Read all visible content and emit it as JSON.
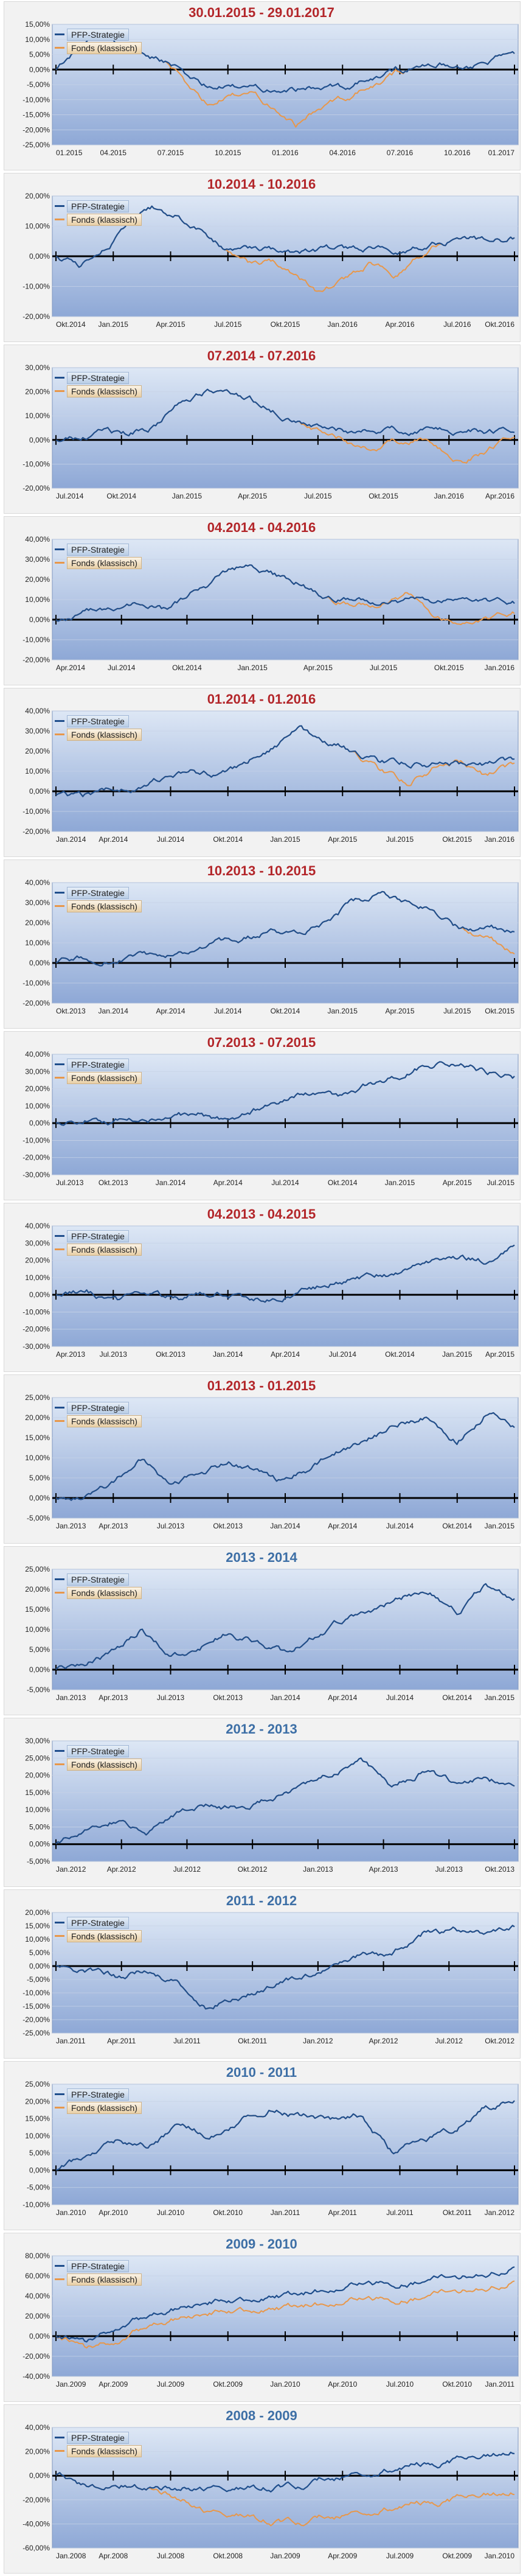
{
  "colors": {
    "strategy": "#1f4e8c",
    "funds": "#e8974a",
    "title_red": "#b3262a",
    "title_blue": "#3d6fa6",
    "plot_top": "#dde7f5",
    "plot_bottom": "#8ea8d6"
  },
  "legend": {
    "strategy": "PFP-Strategie",
    "funds": "Fonds (klassisch)"
  },
  "chart_data": [
    {
      "type": "line",
      "title": "30.01.2015 - 29.01.2017",
      "title_color": "red",
      "yticks": [
        15,
        10,
        5,
        0,
        -5,
        -10,
        -15,
        -20,
        -25
      ],
      "ylim": [
        -25,
        15
      ],
      "xticks": [
        "01.2015",
        "04.2015",
        "07.2015",
        "10.2015",
        "01.2016",
        "04.2016",
        "07.2016",
        "10.2016",
        "01.2017"
      ],
      "series": [
        {
          "name": "PFP-Strategie",
          "keypoints": [
            0,
            7,
            12,
            8,
            5,
            3,
            -2,
            -6,
            -6,
            -6,
            -6,
            -6,
            -6,
            -6,
            -4,
            -2,
            0,
            1,
            2,
            1,
            3,
            5
          ]
        },
        {
          "name": "Fonds (klassisch)",
          "keypoints": [
            0,
            7,
            12,
            8,
            5,
            3,
            -5,
            -12,
            -9,
            -8,
            -12,
            -18,
            -13,
            -10,
            -7,
            -4,
            0,
            1,
            2,
            1,
            3,
            5
          ]
        }
      ]
    },
    {
      "type": "line",
      "title": "10.2014 - 10.2016",
      "title_color": "red",
      "yticks": [
        20,
        10,
        0,
        -10,
        -20
      ],
      "ylim": [
        -20,
        20
      ],
      "xticks": [
        "Okt.2014",
        "Jan.2015",
        "Apr.2015",
        "Jul.2015",
        "Okt.2015",
        "Jan.2016",
        "Apr.2016",
        "Jul.2016",
        "Okt.2016"
      ],
      "series": [
        {
          "name": "PFP-Strategie",
          "keypoints": [
            0,
            -3,
            3,
            10,
            16,
            14,
            9,
            2,
            2,
            2,
            2,
            2,
            2,
            2,
            2,
            3,
            5,
            6,
            5,
            6
          ]
        },
        {
          "name": "Fonds (klassisch)",
          "keypoints": [
            0,
            -3,
            3,
            10,
            16,
            14,
            9,
            2,
            -3,
            -2,
            -6,
            -13,
            -8,
            -3,
            -6,
            0,
            5,
            6,
            5,
            6
          ]
        }
      ]
    },
    {
      "type": "line",
      "title": "07.2014 - 07.2016",
      "title_color": "red",
      "yticks": [
        30,
        20,
        10,
        0,
        -10,
        -20
      ],
      "ylim": [
        -20,
        30
      ],
      "xticks": [
        "Jul.2014",
        "Okt.2014",
        "Jan.2015",
        "Apr.2015",
        "Jul.2015",
        "Okt.2015",
        "Jan.2016",
        "Apr.2016"
      ],
      "series": [
        {
          "name": "PFP-Strategie",
          "keypoints": [
            0,
            1,
            3,
            2,
            5,
            14,
            20,
            22,
            18,
            13,
            8,
            4,
            4,
            4,
            4,
            4,
            4,
            4,
            4,
            4
          ]
        },
        {
          "name": "Fonds (klassisch)",
          "keypoints": [
            0,
            1,
            3,
            2,
            5,
            14,
            20,
            22,
            18,
            13,
            8,
            2,
            0,
            -4,
            -1,
            1,
            -5,
            -9,
            -3,
            2
          ]
        }
      ]
    },
    {
      "type": "line",
      "title": "04.2014 - 04.2016",
      "title_color": "red",
      "yticks": [
        40,
        30,
        20,
        10,
        0,
        -10,
        -20
      ],
      "ylim": [
        -20,
        40
      ],
      "xticks": [
        "Apr.2014",
        "Jul.2014",
        "Okt.2014",
        "Jan.2015",
        "Apr.2015",
        "Jul.2015",
        "Okt.2015",
        "Jan.2016"
      ],
      "series": [
        {
          "name": "PFP-Strategie",
          "keypoints": [
            0,
            3,
            6,
            8,
            5,
            12,
            20,
            26,
            22,
            18,
            12,
            9,
            9,
            9,
            9,
            9,
            9,
            9
          ]
        },
        {
          "name": "Fonds (klassisch)",
          "keypoints": [
            0,
            3,
            6,
            8,
            5,
            12,
            20,
            26,
            22,
            18,
            12,
            6,
            8,
            12,
            2,
            -4,
            0,
            4
          ]
        }
      ]
    },
    {
      "type": "line",
      "title": "01.2014 - 01.2016",
      "title_color": "red",
      "yticks": [
        40,
        30,
        20,
        10,
        0,
        -10,
        -20
      ],
      "ylim": [
        -20,
        40
      ],
      "xticks": [
        "Jan.2014",
        "Apr.2014",
        "Jul.2014",
        "Okt.2014",
        "Jan.2015",
        "Apr.2015",
        "Jul.2015",
        "Okt.2015",
        "Jan.2016"
      ],
      "series": [
        {
          "name": "PFP-Strategie",
          "keypoints": [
            -2,
            -3,
            0,
            3,
            6,
            9,
            8,
            14,
            22,
            30,
            26,
            20,
            14,
            14,
            14,
            14,
            14,
            14
          ]
        },
        {
          "name": "Fonds (klassisch)",
          "keypoints": [
            -2,
            -3,
            0,
            3,
            6,
            9,
            8,
            14,
            22,
            30,
            26,
            20,
            10,
            4,
            12,
            15,
            8,
            12
          ]
        }
      ]
    },
    {
      "type": "line",
      "title": "10.2013 - 10.2015",
      "title_color": "red",
      "yticks": [
        40,
        30,
        20,
        10,
        0,
        -10,
        -20
      ],
      "ylim": [
        -20,
        40
      ],
      "xticks": [
        "Okt.2013",
        "Jan.2014",
        "Apr.2014",
        "Jul.2014",
        "Okt.2014",
        "Jan.2015",
        "Apr.2015",
        "Jul.2015",
        "Okt.2015"
      ],
      "series": [
        {
          "name": "PFP-Strategie",
          "keypoints": [
            0,
            2,
            1,
            3,
            1,
            4,
            9,
            12,
            16,
            14,
            20,
            30,
            34,
            30,
            26,
            17,
            17,
            17
          ]
        },
        {
          "name": "Fonds (klassisch)",
          "keypoints": [
            0,
            2,
            1,
            3,
            1,
            4,
            9,
            12,
            16,
            14,
            20,
            30,
            34,
            30,
            26,
            17,
            12,
            6
          ]
        }
      ]
    },
    {
      "type": "line",
      "title": "07.2013 - 07.2015",
      "title_color": "red",
      "yticks": [
        40,
        30,
        20,
        10,
        0,
        -10,
        -20,
        -30
      ],
      "ylim": [
        -30,
        40
      ],
      "xticks": [
        "Jul.2013",
        "Okt.2013",
        "Jan.2014",
        "Apr.2014",
        "Jul.2014",
        "Okt.2014",
        "Jan.2015",
        "Apr.2015",
        "Jul.2015"
      ],
      "series": [
        {
          "name": "PFP-Strategie",
          "keypoints": [
            0,
            3,
            2,
            4,
            3,
            5,
            2,
            8,
            14,
            18,
            16,
            22,
            28,
            34,
            36,
            30,
            27
          ]
        },
        {
          "name": "Fonds (klassisch)",
          "keypoints": [
            0,
            3,
            2,
            4,
            3,
            5,
            2,
            8,
            14,
            18,
            16,
            22,
            28,
            34,
            36,
            30,
            27
          ]
        }
      ]
    },
    {
      "type": "line",
      "title": "04.2013 - 04.2015",
      "title_color": "red",
      "yticks": [
        40,
        30,
        20,
        10,
        0,
        -10,
        -20,
        -30
      ],
      "ylim": [
        -30,
        40
      ],
      "xticks": [
        "Apr.2013",
        "Jul.2013",
        "Okt.2013",
        "Jan.2014",
        "Apr.2014",
        "Jul.2014",
        "Okt.2014",
        "Jan.2015",
        "Apr.2015"
      ],
      "series": [
        {
          "name": "PFP-Strategie",
          "keypoints": [
            0,
            2,
            -4,
            0,
            -2,
            1,
            -1,
            -3,
            3,
            7,
            10,
            12,
            16,
            22,
            20,
            28
          ]
        },
        {
          "name": "Fonds (klassisch)",
          "keypoints": [
            0,
            2,
            -4,
            0,
            -2,
            1,
            -1,
            -3,
            3,
            7,
            10,
            12,
            16,
            22,
            20,
            28
          ]
        }
      ]
    },
    {
      "type": "line",
      "title": "01.2013 - 01.2015",
      "title_color": "red",
      "yticks": [
        25,
        20,
        15,
        10,
        5,
        0,
        -5
      ],
      "ylim": [
        -5,
        25
      ],
      "xticks": [
        "Jan.2013",
        "Apr.2013",
        "Jul.2013",
        "Okt.2013",
        "Jan.2014",
        "Apr.2014",
        "Jul.2014",
        "Okt.2014",
        "Jan.2015"
      ],
      "series": [
        {
          "name": "PFP-Strategie",
          "keypoints": [
            0,
            1,
            4,
            10,
            3,
            6,
            9,
            7,
            4,
            8,
            12,
            15,
            18,
            20,
            14,
            21,
            18
          ]
        },
        {
          "name": "Fonds (klassisch)",
          "keypoints": [
            0,
            1,
            4,
            10,
            3,
            6,
            9,
            7,
            4,
            8,
            12,
            15,
            18,
            20,
            14,
            21,
            18
          ]
        }
      ]
    },
    {
      "type": "line",
      "title": "2013 - 2014",
      "title_color": "blue",
      "yticks": [
        25,
        20,
        15,
        10,
        5,
        0,
        -5
      ],
      "ylim": [
        -5,
        25
      ],
      "xticks": [
        "Jan.2013",
        "Apr.2013",
        "Jul.2013",
        "Okt.2013",
        "Jan.2014",
        "Apr.2014",
        "Jul.2014",
        "Okt.2014",
        "Jan.2015"
      ],
      "series": [
        {
          "name": "PFP-Strategie",
          "keypoints": [
            0,
            1,
            4,
            10,
            3,
            6,
            9,
            7,
            4,
            8,
            12,
            15,
            18,
            20,
            14,
            21,
            18
          ]
        },
        {
          "name": "Fonds (klassisch)",
          "keypoints": [
            0,
            1,
            4,
            10,
            3,
            6,
            9,
            7,
            4,
            8,
            12,
            15,
            18,
            20,
            14,
            21,
            18
          ]
        }
      ]
    },
    {
      "type": "line",
      "title": "2012 - 2013",
      "title_color": "blue",
      "yticks": [
        30,
        25,
        20,
        15,
        10,
        5,
        0,
        -5
      ],
      "ylim": [
        -5,
        30
      ],
      "xticks": [
        "Jan.2012",
        "Apr.2012",
        "Jul.2012",
        "Okt.2012",
        "Jan.2013",
        "Apr.2013",
        "Jul.2013",
        "Okt.2013"
      ],
      "series": [
        {
          "name": "PFP-Strategie",
          "keypoints": [
            0,
            5,
            7,
            3,
            9,
            12,
            10,
            13,
            16,
            20,
            24,
            17,
            21,
            18,
            20,
            16
          ]
        },
        {
          "name": "Fonds (klassisch)",
          "keypoints": [
            0,
            5,
            7,
            3,
            9,
            12,
            10,
            13,
            16,
            20,
            24,
            17,
            21,
            18,
            20,
            16
          ]
        }
      ]
    },
    {
      "type": "line",
      "title": "2011 - 2012",
      "title_color": "blue",
      "yticks": [
        20,
        15,
        10,
        5,
        0,
        -5,
        -10,
        -15,
        -20,
        -25
      ],
      "ylim": [
        -25,
        20
      ],
      "xticks": [
        "Jan.2011",
        "Apr.2011",
        "Jul.2011",
        "Okt.2011",
        "Jan.2012",
        "Apr.2012",
        "Jul.2012",
        "Okt.2012"
      ],
      "series": [
        {
          "name": "PFP-Strategie",
          "keypoints": [
            0,
            -2,
            -4,
            -2,
            -6,
            -15,
            -12,
            -8,
            -4,
            0,
            5,
            4,
            12,
            13,
            11,
            14
          ]
        },
        {
          "name": "Fonds (klassisch)",
          "keypoints": [
            0,
            -2,
            -4,
            -2,
            -6,
            -15,
            -12,
            -8,
            -4,
            0,
            5,
            4,
            12,
            13,
            11,
            14
          ]
        }
      ]
    },
    {
      "type": "line",
      "title": "2010 - 2011",
      "title_color": "blue",
      "yticks": [
        25,
        20,
        15,
        10,
        5,
        0,
        -5,
        -10
      ],
      "ylim": [
        -10,
        25
      ],
      "xticks": [
        "Jan.2010",
        "Apr.2010",
        "Jul.2010",
        "Okt.2010",
        "Jan.2011",
        "Apr.2011",
        "Jul.2011",
        "Okt.2011",
        "Jan.2012"
      ],
      "series": [
        {
          "name": "PFP-Strategie",
          "keypoints": [
            0,
            4,
            9,
            7,
            13,
            10,
            15,
            18,
            16,
            14,
            16,
            5,
            9,
            12,
            18,
            20
          ]
        },
        {
          "name": "Fonds (klassisch)",
          "keypoints": [
            0,
            4,
            9,
            7,
            13,
            10,
            15,
            18,
            16,
            14,
            16,
            5,
            9,
            12,
            18,
            20
          ]
        }
      ]
    },
    {
      "type": "line",
      "title": "2009 - 2010",
      "title_color": "blue",
      "yticks": [
        80,
        60,
        40,
        20,
        0,
        -20,
        -40
      ],
      "ylim": [
        -40,
        80
      ],
      "xticks": [
        "Jan.2009",
        "Apr.2009",
        "Jul.2009",
        "Okt.2009",
        "Jan.2010",
        "Apr.2010",
        "Jul.2010",
        "Okt.2010",
        "Jan.2011"
      ],
      "series": [
        {
          "name": "PFP-Strategie",
          "keypoints": [
            0,
            -6,
            8,
            20,
            28,
            33,
            36,
            42,
            40,
            47,
            52,
            50,
            56,
            58,
            64,
            70
          ]
        },
        {
          "name": "Fonds (klassisch)",
          "keypoints": [
            0,
            -12,
            -6,
            10,
            18,
            22,
            26,
            30,
            28,
            33,
            37,
            34,
            40,
            44,
            50,
            56
          ]
        }
      ]
    },
    {
      "type": "line",
      "title": "2008 - 2009",
      "title_color": "blue",
      "yticks": [
        40,
        20,
        0,
        -20,
        -40,
        -60
      ],
      "ylim": [
        -60,
        40
      ],
      "xticks": [
        "Jan.2008",
        "Apr.2008",
        "Jul.2008",
        "Okt.2008",
        "Jan.2009",
        "Apr.2009",
        "Jul.2009",
        "Okt.2009",
        "Jan.2010"
      ],
      "series": [
        {
          "name": "PFP-Strategie",
          "keypoints": [
            0,
            -8,
            -6,
            -10,
            -10,
            -10,
            -10,
            -10,
            -10,
            -2,
            2,
            6,
            10,
            12,
            16,
            22
          ]
        },
        {
          "name": "Fonds (klassisch)",
          "keypoints": [
            0,
            -8,
            -6,
            -10,
            -18,
            -30,
            -32,
            -38,
            -40,
            -34,
            -30,
            -26,
            -22,
            -20,
            -16,
            -12
          ]
        }
      ]
    }
  ]
}
